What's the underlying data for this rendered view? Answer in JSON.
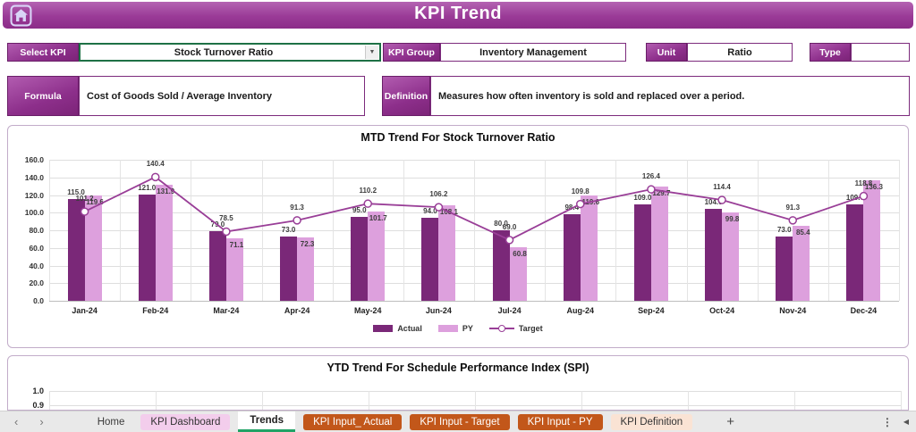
{
  "header": {
    "title": "KPI Trend"
  },
  "icons": {
    "back_arrow": "‹",
    "forward_arrow": "›",
    "dropdown_arrow": "▼",
    "more": "⋮",
    "scroll_left": "◀"
  },
  "controls": {
    "select_kpi_label": "Select KPI",
    "select_kpi_value": "Stock Turnover Ratio",
    "kpi_group_label": "KPI Group",
    "kpi_group_value": "Inventory Management",
    "unit_label": "Unit",
    "unit_value": "Ratio",
    "type_label": "Type",
    "type_value": "",
    "formula_label": "Formula",
    "formula_value": "Cost of Goods Sold / Average Inventory",
    "definition_label": "Definition",
    "definition_value": "Measures how often inventory is sold and replaced over a period."
  },
  "chart_data": [
    {
      "type": "bar",
      "title": "MTD Trend For Stock Turnover Ratio",
      "categories": [
        "Jan-24",
        "Feb-24",
        "Mar-24",
        "Apr-24",
        "May-24",
        "Jun-24",
        "Jul-24",
        "Aug-24",
        "Sep-24",
        "Oct-24",
        "Nov-24",
        "Dec-24"
      ],
      "series": [
        {
          "name": "Actual",
          "chart": "bar",
          "color": "#7A2878",
          "values": [
            115.0,
            121.0,
            79.0,
            73.0,
            95.0,
            94.0,
            80.0,
            98.4,
            109.0,
            104.0,
            73.0,
            109.0
          ]
        },
        {
          "name": "PY",
          "chart": "bar",
          "color": "#DDA0DD",
          "values": [
            119.6,
            131.9,
            71.1,
            72.3,
            101.7,
            108.1,
            60.8,
            119.6,
            129.7,
            99.8,
            85.4,
            136.3
          ]
        },
        {
          "name": "Target",
          "chart": "line",
          "color": "#993E97",
          "values": [
            101.2,
            140.4,
            78.5,
            91.3,
            110.2,
            106.2,
            69.0,
            109.8,
            126.4,
            114.4,
            91.3,
            118.8
          ]
        }
      ],
      "ylim": [
        0,
        160
      ],
      "ytick_step": 20,
      "grid": true,
      "legend_position": "bottom"
    },
    {
      "type": "line",
      "title": "YTD Trend For Schedule Performance Index (SPI)",
      "visible_yticks": [
        "1.0",
        "0.9"
      ],
      "clipped": true
    }
  ],
  "tabbar": {
    "tabs": [
      {
        "label": "Home",
        "style": "plain"
      },
      {
        "label": "KPI Dashboard",
        "style": "pink"
      },
      {
        "label": "Trends",
        "style": "active"
      },
      {
        "label": "KPI Input_ Actual",
        "style": "orange"
      },
      {
        "label": "KPI Input - Target",
        "style": "orange"
      },
      {
        "label": "KPI Input - PY",
        "style": "orange"
      },
      {
        "label": "KPI Definition",
        "style": "peach"
      },
      {
        "label": "+",
        "style": "add"
      }
    ]
  }
}
